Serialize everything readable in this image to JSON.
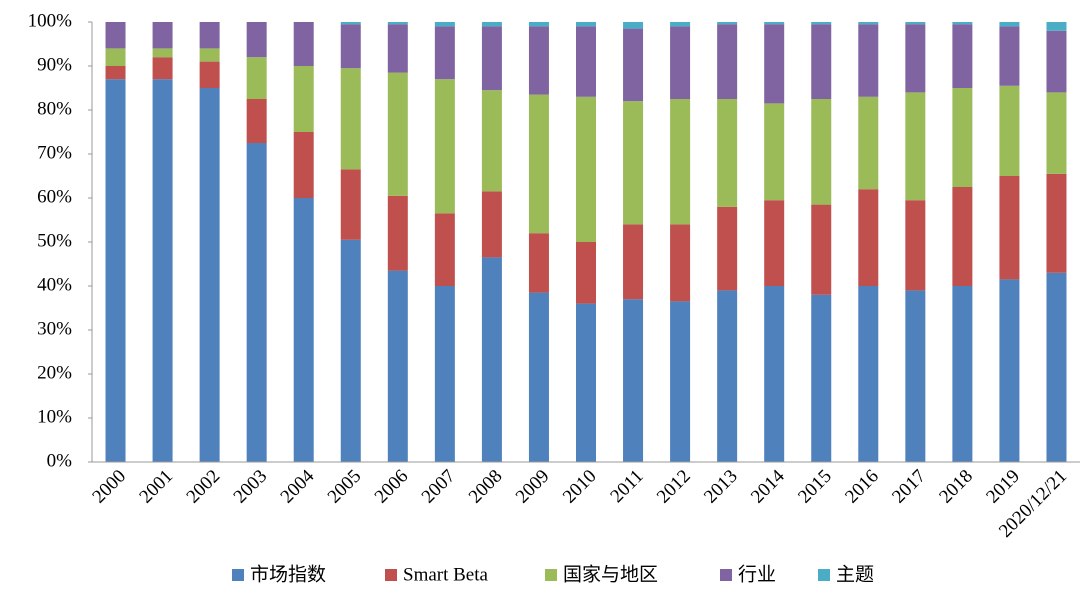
{
  "chart_data": {
    "type": "stacked_bar",
    "categories": [
      "2000",
      "2001",
      "2002",
      "2003",
      "2004",
      "2005",
      "2006",
      "2007",
      "2008",
      "2009",
      "2010",
      "2011",
      "2012",
      "2013",
      "2014",
      "2015",
      "2016",
      "2017",
      "2018",
      "2019",
      "2020/12/21"
    ],
    "series": [
      {
        "name": "市场指数",
        "color": "#4f81bd",
        "values": [
          87,
          87,
          85,
          72.5,
          60,
          50.5,
          43.5,
          40,
          46.5,
          38.5,
          36,
          37,
          36.5,
          39,
          40,
          38,
          40,
          39,
          40,
          41.5,
          43
        ]
      },
      {
        "name": "Smart Beta",
        "color": "#c0504d",
        "values": [
          3,
          5,
          6,
          10,
          15,
          16,
          17,
          16.5,
          15,
          13.5,
          14,
          17,
          17.5,
          19,
          19.5,
          20.5,
          22,
          20.5,
          22.5,
          23.5,
          22.5
        ]
      },
      {
        "name": "国家与地区",
        "color": "#9bbb59",
        "values": [
          4,
          2,
          3,
          9.5,
          15,
          23,
          28,
          30.5,
          23,
          31.5,
          33,
          28,
          28.5,
          24.5,
          22,
          24,
          21,
          24.5,
          22.5,
          20.5,
          18.5
        ]
      },
      {
        "name": "行业",
        "color": "#8064a2",
        "values": [
          6,
          6,
          6,
          8,
          10,
          10,
          11,
          12,
          14.5,
          15.5,
          16,
          16.5,
          16.5,
          17,
          18,
          17,
          16.5,
          15.5,
          14.5,
          13.5,
          14
        ]
      },
      {
        "name": "主题",
        "color": "#4bacc6",
        "values": [
          0,
          0,
          0,
          0,
          0,
          0.5,
          0.5,
          1,
          1,
          1,
          1,
          1.5,
          1,
          0.5,
          0.5,
          0.5,
          0.5,
          0.5,
          0.5,
          1,
          2
        ]
      }
    ],
    "ylim": [
      0,
      100
    ],
    "yticks": [
      {
        "value": 0,
        "label": "0%"
      },
      {
        "value": 10,
        "label": "10%"
      },
      {
        "value": 20,
        "label": "20%"
      },
      {
        "value": 30,
        "label": "30%"
      },
      {
        "value": 40,
        "label": "40%"
      },
      {
        "value": 50,
        "label": "50%"
      },
      {
        "value": 60,
        "label": "60%"
      },
      {
        "value": 70,
        "label": "70%"
      },
      {
        "value": 80,
        "label": "80%"
      },
      {
        "value": 90,
        "label": "90%"
      },
      {
        "value": 100,
        "label": "100%"
      }
    ],
    "grid": false,
    "legend": "bottom"
  }
}
